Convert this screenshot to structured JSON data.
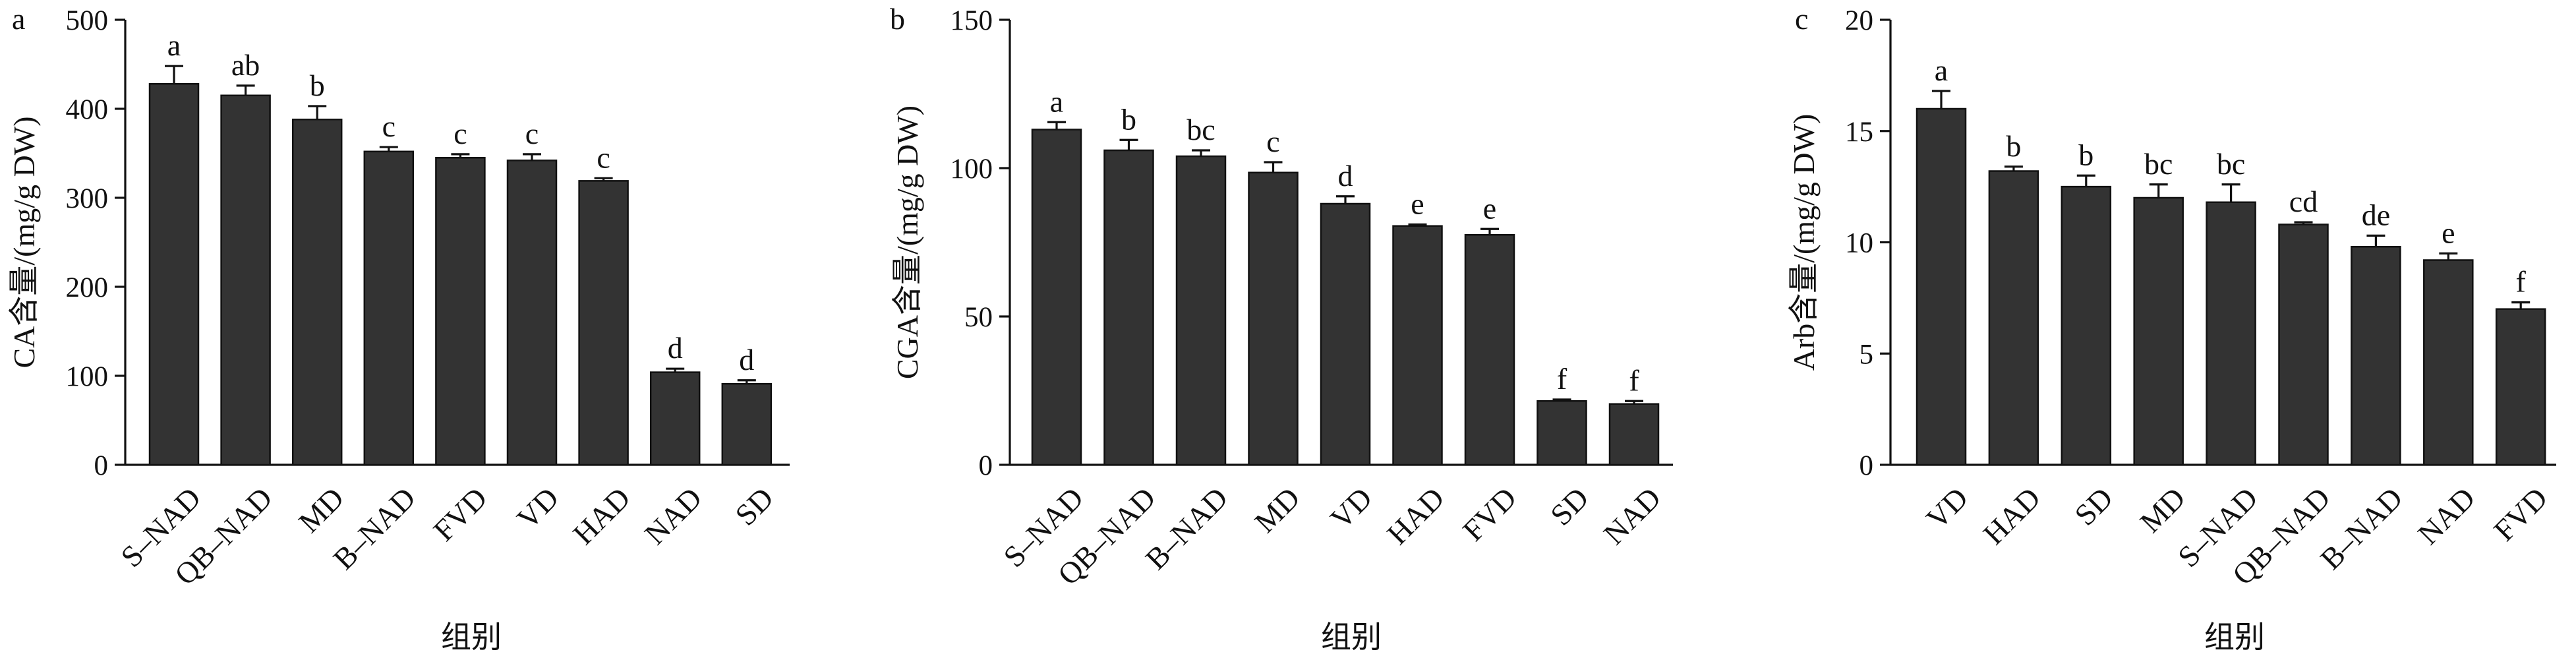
{
  "chart_data": [
    {
      "panel": "a",
      "type": "bar",
      "ylabel": "CA含量/(mg/g DW)",
      "xlabel": "组别",
      "ylim": [
        0,
        500
      ],
      "yticks": [
        0,
        100,
        200,
        300,
        400,
        500
      ],
      "grid": false,
      "bar_color": "#333333",
      "categories": [
        "S–NAD",
        "QB–NAD",
        "MD",
        "B–NAD",
        "FVD",
        "VD",
        "HAD",
        "NAD",
        "SD"
      ],
      "values": [
        428,
        415,
        388,
        352,
        345,
        342,
        319,
        104,
        91
      ],
      "errors": [
        20,
        11,
        15,
        5,
        4,
        7,
        3,
        4,
        4
      ],
      "significance": [
        "a",
        "ab",
        "b",
        "c",
        "c",
        "c",
        "c",
        "d",
        "d"
      ]
    },
    {
      "panel": "b",
      "type": "bar",
      "ylabel": "CGA含量/(mg/g DW)",
      "xlabel": "组别",
      "ylim": [
        0,
        150
      ],
      "yticks": [
        0,
        50,
        100,
        150
      ],
      "grid": false,
      "bar_color": "#333333",
      "categories": [
        "S–NAD",
        "QB–NAD",
        "B–NAD",
        "MD",
        "VD",
        "HAD",
        "FVD",
        "SD",
        "NAD"
      ],
      "values": [
        113,
        106,
        104,
        98.5,
        88,
        80.5,
        77.5,
        21.5,
        20.5
      ],
      "errors": [
        2.5,
        3.5,
        2,
        3.5,
        2.5,
        0.5,
        2,
        0.5,
        1
      ],
      "significance": [
        "a",
        "b",
        "bc",
        "c",
        "d",
        "e",
        "e",
        "f",
        "f"
      ]
    },
    {
      "panel": "c",
      "type": "bar",
      "ylabel": "Arb含量/(mg/g DW)",
      "xlabel": "组别",
      "ylim": [
        0,
        20
      ],
      "yticks": [
        0,
        5,
        10,
        15,
        20
      ],
      "grid": false,
      "bar_color": "#333333",
      "categories": [
        "VD",
        "HAD",
        "SD",
        "MD",
        "S–NAD",
        "QB–NAD",
        "B–NAD",
        "NAD",
        "FVD"
      ],
      "values": [
        16,
        13.2,
        12.5,
        12,
        11.8,
        10.8,
        9.8,
        9.2,
        7
      ],
      "errors": [
        0.8,
        0.2,
        0.5,
        0.6,
        0.8,
        0.1,
        0.5,
        0.3,
        0.3
      ],
      "significance": [
        "a",
        "b",
        "b",
        "bc",
        "bc",
        "cd",
        "de",
        "e",
        "f"
      ]
    }
  ]
}
